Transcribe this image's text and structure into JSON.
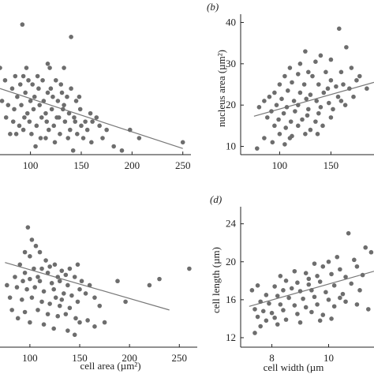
{
  "chart_data": [
    {
      "panel": "a",
      "type": "scatter",
      "tag": "",
      "xlabel": "",
      "ylabel": "",
      "xlim": [
        70,
        258
      ],
      "ylim": [
        8,
        42
      ],
      "xticks": [
        100,
        150,
        200,
        250
      ],
      "yticks": [],
      "trend": {
        "x": [
          70,
          250
        ],
        "y": [
          24.0,
          9.5
        ]
      },
      "points": [
        [
          92,
          39.5
        ],
        [
          140,
          36.5
        ],
        [
          70,
          29
        ],
        [
          96,
          29
        ],
        [
          119,
          29
        ],
        [
          133,
          29
        ],
        [
          93,
          27
        ],
        [
          75,
          26
        ],
        [
          85,
          27
        ],
        [
          90,
          25
        ],
        [
          98,
          26
        ],
        [
          102,
          25
        ],
        [
          107,
          27
        ],
        [
          112,
          26
        ],
        [
          120,
          24
        ],
        [
          125,
          26
        ],
        [
          130,
          25
        ],
        [
          82,
          24
        ],
        [
          87,
          22
        ],
        [
          95,
          23
        ],
        [
          100,
          21
        ],
        [
          104,
          22
        ],
        [
          108,
          24
        ],
        [
          113,
          21
        ],
        [
          117,
          23
        ],
        [
          122,
          22
        ],
        [
          127,
          21
        ],
        [
          131,
          23
        ],
        [
          136,
          22
        ],
        [
          140,
          24
        ],
        [
          145,
          21
        ],
        [
          72,
          21
        ],
        [
          78,
          20
        ],
        [
          84,
          19
        ],
        [
          91,
          20
        ],
        [
          97,
          18
        ],
        [
          103,
          19
        ],
        [
          109,
          20
        ],
        [
          115,
          18
        ],
        [
          121,
          19
        ],
        [
          126,
          17
        ],
        [
          132,
          19
        ],
        [
          138,
          18
        ],
        [
          143,
          17
        ],
        [
          149,
          19
        ],
        [
          154,
          16
        ],
        [
          159,
          18
        ],
        [
          165,
          17
        ],
        [
          76,
          17
        ],
        [
          83,
          16
        ],
        [
          89,
          15
        ],
        [
          94,
          17
        ],
        [
          99,
          16
        ],
        [
          106,
          15
        ],
        [
          111,
          17
        ],
        [
          116,
          16
        ],
        [
          123,
          15
        ],
        [
          128,
          17
        ],
        [
          134,
          16
        ],
        [
          139,
          14
        ],
        [
          144,
          16
        ],
        [
          150,
          15
        ],
        [
          156,
          14
        ],
        [
          161,
          16
        ],
        [
          168,
          15
        ],
        [
          175,
          14
        ],
        [
          86,
          13
        ],
        [
          93,
          14
        ],
        [
          101,
          13
        ],
        [
          110,
          12
        ],
        [
          118,
          14
        ],
        [
          129,
          13
        ],
        [
          137,
          12
        ],
        [
          146,
          13
        ],
        [
          152,
          12
        ],
        [
          160,
          11
        ],
        [
          171,
          12
        ],
        [
          182,
          10
        ],
        [
          198,
          14
        ],
        [
          207,
          12
        ],
        [
          250,
          11
        ],
        [
          142,
          9
        ],
        [
          190,
          9
        ],
        [
          115,
          12
        ],
        [
          124,
          11
        ],
        [
          80,
          13
        ],
        [
          105,
          10
        ],
        [
          133,
          20
        ],
        [
          148,
          22
        ],
        [
          117,
          30
        ]
      ]
    },
    {
      "panel": "b",
      "type": "scatter",
      "tag": "(b)",
      "xlabel": "",
      "ylabel": "nucleus area (µm²)",
      "xlim": [
        62,
        192
      ],
      "ylim": [
        8,
        42
      ],
      "xticks": [
        100,
        150
      ],
      "yticks": [
        10,
        20,
        30,
        40
      ],
      "trend": {
        "x": [
          75,
          192
        ],
        "y": [
          17.3,
          25.5
        ]
      },
      "points": [
        [
          158,
          38.5
        ],
        [
          165,
          34
        ],
        [
          125,
          33
        ],
        [
          140,
          32
        ],
        [
          120,
          30
        ],
        [
          135,
          30.5
        ],
        [
          150,
          31
        ],
        [
          170,
          29
        ],
        [
          110,
          29
        ],
        [
          128,
          28
        ],
        [
          145,
          28
        ],
        [
          160,
          28
        ],
        [
          105,
          27
        ],
        [
          118,
          27.5
        ],
        [
          132,
          27
        ],
        [
          150,
          26
        ],
        [
          175,
          26
        ],
        [
          100,
          25
        ],
        [
          112,
          25.5
        ],
        [
          124,
          25
        ],
        [
          138,
          25
        ],
        [
          155,
          24.5
        ],
        [
          168,
          24
        ],
        [
          185,
          24
        ],
        [
          95,
          23
        ],
        [
          108,
          23.5
        ],
        [
          120,
          23
        ],
        [
          130,
          22.5
        ],
        [
          143,
          23
        ],
        [
          157,
          22
        ],
        [
          172,
          22
        ],
        [
          90,
          22
        ],
        [
          102,
          21.5
        ],
        [
          114,
          21
        ],
        [
          126,
          21.5
        ],
        [
          136,
          21
        ],
        [
          148,
          20.5
        ],
        [
          160,
          21
        ],
        [
          85,
          21
        ],
        [
          97,
          20
        ],
        [
          107,
          19.5
        ],
        [
          118,
          20
        ],
        [
          128,
          19
        ],
        [
          140,
          19.5
        ],
        [
          152,
          19
        ],
        [
          164,
          20
        ],
        [
          80,
          19.5
        ],
        [
          92,
          18.5
        ],
        [
          104,
          18
        ],
        [
          115,
          18.5
        ],
        [
          127,
          17.5
        ],
        [
          138,
          18
        ],
        [
          150,
          17
        ],
        [
          88,
          17
        ],
        [
          99,
          16.5
        ],
        [
          111,
          16
        ],
        [
          122,
          16.5
        ],
        [
          135,
          16
        ],
        [
          95,
          15
        ],
        [
          106,
          14.5
        ],
        [
          118,
          15
        ],
        [
          130,
          14
        ],
        [
          142,
          15
        ],
        [
          100,
          13
        ],
        [
          112,
          12.5
        ],
        [
          125,
          13
        ],
        [
          137,
          13
        ],
        [
          85,
          12
        ],
        [
          93,
          11
        ],
        [
          105,
          10.5
        ],
        [
          78,
          9.5
        ],
        [
          110,
          12
        ],
        [
          147,
          24
        ],
        [
          162,
          25
        ],
        [
          178,
          27
        ]
      ]
    },
    {
      "panel": "c",
      "type": "scatter",
      "tag": "",
      "xlabel": "cell area (µm²)",
      "ylabel": "",
      "xlim": [
        70,
        268
      ],
      "ylim": [
        8,
        42
      ],
      "xticks": [
        100,
        150,
        200,
        250
      ],
      "yticks": [],
      "trend": {
        "x": [
          75,
          240
        ],
        "y": [
          28.5,
          17.0
        ]
      },
      "points": [
        [
          98,
          37
        ],
        [
          102,
          34
        ],
        [
          106,
          32.5
        ],
        [
          95,
          31
        ],
        [
          100,
          30
        ],
        [
          110,
          31
        ],
        [
          116,
          29
        ],
        [
          125,
          28
        ],
        [
          90,
          28
        ],
        [
          104,
          27
        ],
        [
          112,
          27
        ],
        [
          120,
          27.5
        ],
        [
          132,
          26.5
        ],
        [
          140,
          27
        ],
        [
          148,
          28
        ],
        [
          95,
          26
        ],
        [
          108,
          25
        ],
        [
          118,
          26
        ],
        [
          128,
          25
        ],
        [
          136,
          25.5
        ],
        [
          145,
          25
        ],
        [
          152,
          24
        ],
        [
          85,
          25
        ],
        [
          93,
          24
        ],
        [
          100,
          24.5
        ],
        [
          110,
          24
        ],
        [
          122,
          23.5
        ],
        [
          130,
          24
        ],
        [
          138,
          23
        ],
        [
          150,
          22
        ],
        [
          160,
          23
        ],
        [
          77,
          23
        ],
        [
          87,
          22.5
        ],
        [
          97,
          22
        ],
        [
          105,
          22.5
        ],
        [
          114,
          21.5
        ],
        [
          124,
          22
        ],
        [
          134,
          21
        ],
        [
          142,
          20.5
        ],
        [
          156,
          21
        ],
        [
          165,
          20
        ],
        [
          188,
          24
        ],
        [
          230,
          24.5
        ],
        [
          220,
          23
        ],
        [
          260,
          27
        ],
        [
          80,
          20
        ],
        [
          92,
          19.5
        ],
        [
          102,
          20
        ],
        [
          112,
          19
        ],
        [
          120,
          18.5
        ],
        [
          130,
          18
        ],
        [
          140,
          17.5
        ],
        [
          148,
          19
        ],
        [
          170,
          18
        ],
        [
          196,
          19
        ],
        [
          82,
          17
        ],
        [
          95,
          16.5
        ],
        [
          108,
          17
        ],
        [
          118,
          16
        ],
        [
          128,
          15.5
        ],
        [
          136,
          16
        ],
        [
          146,
          15
        ],
        [
          158,
          14.5
        ],
        [
          100,
          14
        ],
        [
          114,
          13.5
        ],
        [
          124,
          12.5
        ],
        [
          138,
          12
        ],
        [
          145,
          11
        ],
        [
          150,
          14
        ],
        [
          165,
          13
        ],
        [
          175,
          14
        ],
        [
          88,
          15
        ],
        [
          132,
          19.5
        ],
        [
          126,
          20
        ]
      ]
    },
    {
      "panel": "d",
      "type": "scatter",
      "tag": "(d)",
      "xlabel": "cell width (µm",
      "ylabel": "cell length (µm)",
      "xlim": [
        6.9,
        11.6
      ],
      "ylim": [
        11.0,
        25.8
      ],
      "xticks": [
        8,
        10
      ],
      "yticks": [
        12,
        16,
        20,
        24
      ],
      "trend": {
        "x": [
          7.2,
          11.6
        ],
        "y": [
          15.3,
          19.0
        ]
      },
      "points": [
        [
          10.7,
          23
        ],
        [
          11.3,
          21.5
        ],
        [
          11.5,
          21
        ],
        [
          10.3,
          20.5
        ],
        [
          10.0,
          20
        ],
        [
          10.9,
          20.2
        ],
        [
          9.5,
          19.8
        ],
        [
          9.8,
          19.5
        ],
        [
          10.4,
          19.2
        ],
        [
          11.0,
          19.5
        ],
        [
          8.8,
          19
        ],
        [
          9.2,
          18.8
        ],
        [
          9.6,
          18.5
        ],
        [
          10.1,
          18.7
        ],
        [
          10.6,
          18.4
        ],
        [
          11.2,
          18.6
        ],
        [
          8.5,
          18
        ],
        [
          8.9,
          17.8
        ],
        [
          9.3,
          17.6
        ],
        [
          9.7,
          17.9
        ],
        [
          10.2,
          17.5
        ],
        [
          10.8,
          17.7
        ],
        [
          7.5,
          17.5
        ],
        [
          8.1,
          17.4
        ],
        [
          8.4,
          17
        ],
        [
          8.7,
          17.2
        ],
        [
          9.0,
          16.9
        ],
        [
          9.4,
          17
        ],
        [
          9.9,
          16.8
        ],
        [
          10.5,
          16.6
        ],
        [
          11.1,
          17
        ],
        [
          7.3,
          17
        ],
        [
          7.8,
          16.5
        ],
        [
          8.2,
          16.4
        ],
        [
          8.6,
          16.2
        ],
        [
          9.1,
          16.1
        ],
        [
          9.5,
          16.3
        ],
        [
          10.0,
          16
        ],
        [
          10.4,
          16.2
        ],
        [
          7.6,
          15.8
        ],
        [
          7.9,
          15.6
        ],
        [
          8.3,
          15.5
        ],
        [
          8.8,
          15.4
        ],
        [
          9.2,
          15.2
        ],
        [
          9.6,
          15.5
        ],
        [
          10.2,
          15.3
        ],
        [
          7.4,
          15
        ],
        [
          7.7,
          14.8
        ],
        [
          8.0,
          14.6
        ],
        [
          8.4,
          14.9
        ],
        [
          8.9,
          14.5
        ],
        [
          9.4,
          14.7
        ],
        [
          9.8,
          14.4
        ],
        [
          7.5,
          14.2
        ],
        [
          7.8,
          13.8
        ],
        [
          8.1,
          14.1
        ],
        [
          8.5,
          13.9
        ],
        [
          9.0,
          13.6
        ],
        [
          9.7,
          13.8
        ],
        [
          7.6,
          13.2
        ],
        [
          8.2,
          13.4
        ],
        [
          10.1,
          14
        ],
        [
          11.0,
          15.5
        ],
        [
          11.4,
          15
        ],
        [
          7.4,
          12.5
        ],
        [
          10.6,
          15.8
        ],
        [
          9.3,
          18.2
        ],
        [
          8.3,
          18.5
        ]
      ]
    }
  ]
}
